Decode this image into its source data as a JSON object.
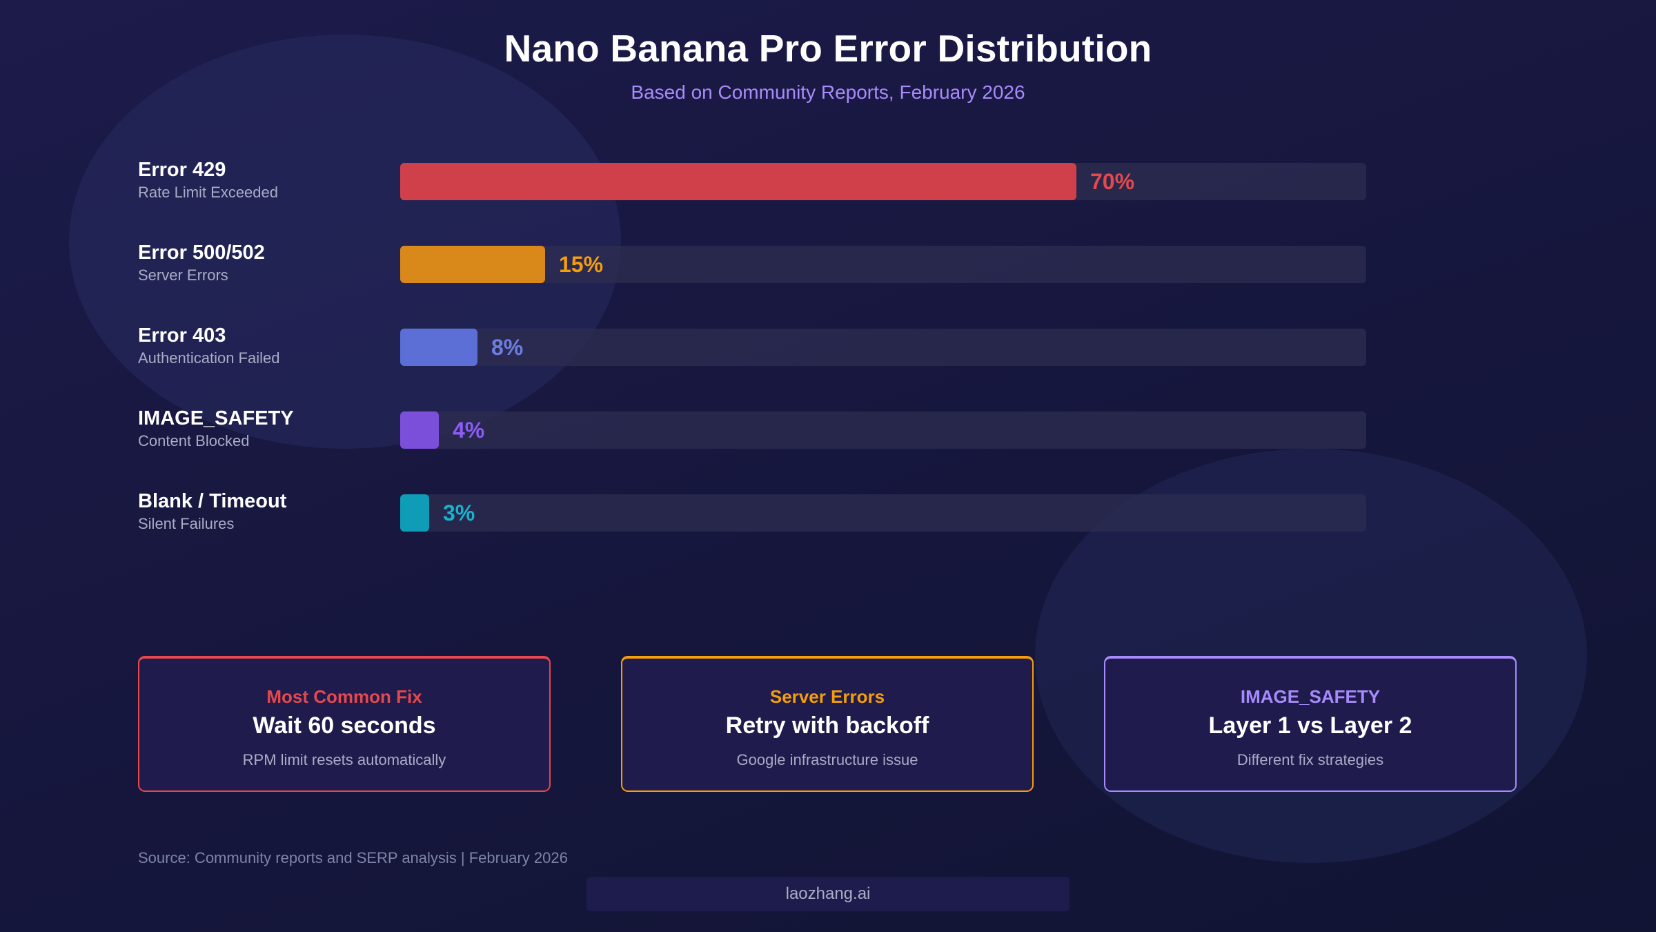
{
  "chart_data": {
    "type": "bar",
    "orientation": "horizontal",
    "title": "Nano Banana Pro Error Distribution",
    "subtitle": "Based on Community Reports, February 2026",
    "categories": [
      "Error 429",
      "Error 500/502",
      "Error 403",
      "IMAGE_SAFETY",
      "Blank / Timeout"
    ],
    "descriptions": [
      "Rate Limit Exceeded",
      "Server Errors",
      "Authentication Failed",
      "Content Blocked",
      "Silent Failures"
    ],
    "values": [
      70,
      15,
      8,
      4,
      3
    ],
    "value_labels": [
      "70%",
      "15%",
      "8%",
      "4%",
      "3%"
    ],
    "colors": [
      "#d0404a",
      "#d9891a",
      "#5b6fd6",
      "#7c4fdb",
      "#0e9cb6"
    ],
    "label_colors": [
      "#e5484d",
      "#f59e0b",
      "#6b7fe3",
      "#8b5cf6",
      "#17b3cf"
    ],
    "xlim": [
      0,
      100
    ],
    "grid": false,
    "legend": "none"
  },
  "cards": [
    {
      "label": "Most Common Fix",
      "main": "Wait 60 seconds",
      "desc": "RPM limit resets automatically",
      "color": "#e5484d"
    },
    {
      "label": "Server Errors",
      "main": "Retry with backoff",
      "desc": "Google infrastructure issue",
      "color": "#f59e0b"
    },
    {
      "label": "IMAGE_SAFETY",
      "main": "Layer 1 vs Layer 2",
      "desc": "Different fix strategies",
      "color": "#a78bfa"
    }
  ],
  "source": "Source: Community reports and SERP analysis | February 2026",
  "brand": "laozhang.ai"
}
